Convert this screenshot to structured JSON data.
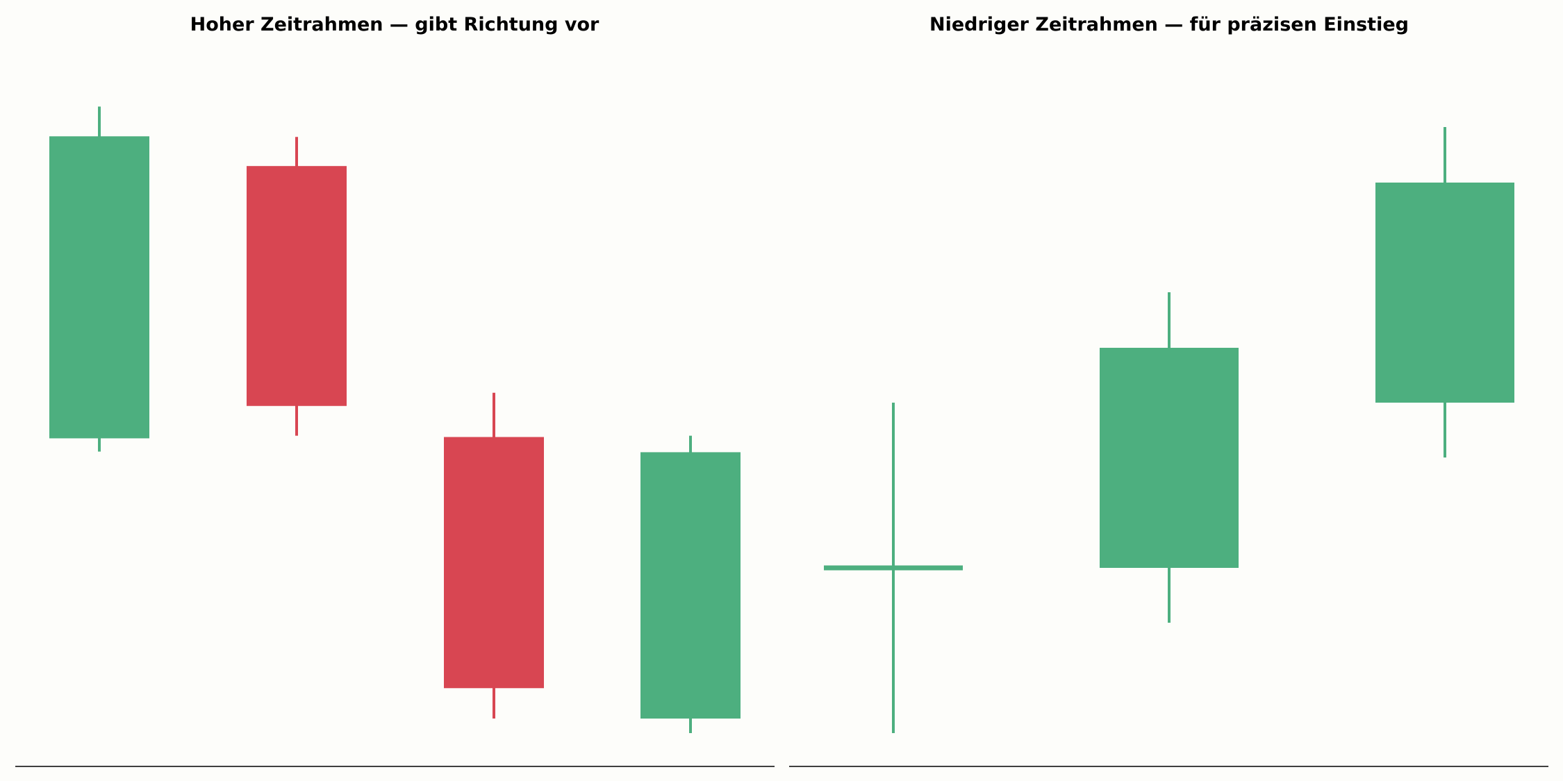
{
  "colors": {
    "up": "#4daf7f",
    "down": "#d84652",
    "background": "#fdfdfa",
    "axis": "#000000"
  },
  "chart_data": [
    {
      "type": "candlestick",
      "title": "Hoher Zeitrahmen — gibt Richtung vor",
      "grid": false,
      "ylim": [
        0,
        100
      ],
      "candles": [
        {
          "open": 44.6,
          "high": 94.8,
          "low": 42.6,
          "close": 90.3,
          "direction": "up"
        },
        {
          "open": 85.8,
          "high": 90.2,
          "low": 45.0,
          "close": 49.5,
          "direction": "down"
        },
        {
          "open": 44.8,
          "high": 51.5,
          "low": 2.2,
          "close": 6.8,
          "direction": "down"
        },
        {
          "open": 2.2,
          "high": 45.0,
          "low": 0.0,
          "close": 42.5,
          "direction": "up"
        }
      ]
    },
    {
      "type": "candlestick",
      "title": "Niedriger Zeitrahmen — für präzisen Einstieg",
      "grid": false,
      "ylim": [
        0,
        100
      ],
      "candles": [
        {
          "open": 25.0,
          "high": 50.0,
          "low": 0.0,
          "close": 25.0,
          "direction": "doji"
        },
        {
          "open": 25.0,
          "high": 66.7,
          "low": 16.7,
          "close": 58.3,
          "direction": "up"
        },
        {
          "open": 50.0,
          "high": 91.7,
          "low": 41.7,
          "close": 83.3,
          "direction": "up"
        }
      ]
    }
  ]
}
